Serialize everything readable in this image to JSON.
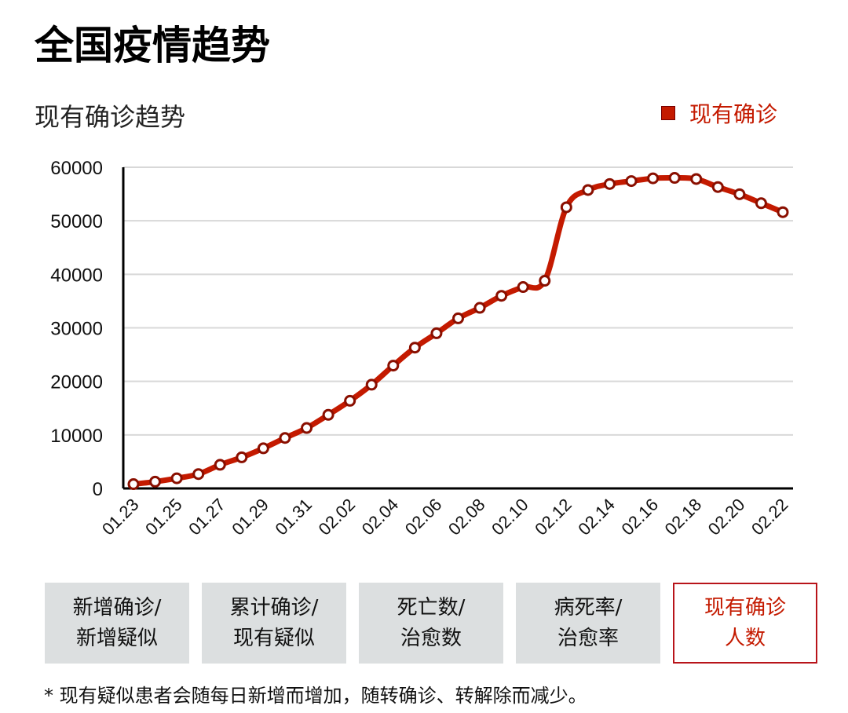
{
  "page_title": "全国疫情趋势",
  "chart_data": {
    "type": "line",
    "title": "现有确诊趋势",
    "series": [
      {
        "name": "现有确诊",
        "color": "#c41a00",
        "values": [
          799,
          1259,
          1896,
          2684,
          4412,
          5806,
          7498,
          9426,
          11289,
          13748,
          16369,
          19381,
          22942,
          26302,
          28985,
          31774,
          33738,
          35982,
          37626,
          38800,
          52526,
          55748,
          56873,
          57416,
          57934,
          58016,
          57805,
          56303,
          54965,
          53284,
          51606
        ]
      }
    ],
    "categories": [
      "01.23",
      "01.24",
      "01.25",
      "01.26",
      "01.27",
      "01.28",
      "01.29",
      "01.30",
      "01.31",
      "02.01",
      "02.02",
      "02.03",
      "02.04",
      "02.05",
      "02.06",
      "02.07",
      "02.08",
      "02.09",
      "02.10",
      "02.11",
      "02.12",
      "02.13",
      "02.14",
      "02.15",
      "02.16",
      "02.17",
      "02.18",
      "02.19",
      "02.20",
      "02.21",
      "02.22"
    ],
    "x_tick_labels": [
      "01.23",
      "01.25",
      "01.27",
      "01.29",
      "01.31",
      "02.02",
      "02.04",
      "02.06",
      "02.08",
      "02.10",
      "02.12",
      "02.14",
      "02.16",
      "02.18",
      "02.20",
      "02.22"
    ],
    "y_ticks": [
      "0",
      "10000",
      "20000",
      "30000",
      "40000",
      "50000",
      "60000"
    ],
    "ylim": [
      0,
      60000
    ],
    "grid": true,
    "legend": "top-right"
  },
  "buttons": [
    {
      "line1": "新增确诊/",
      "line2": "新增疑似",
      "active": false
    },
    {
      "line1": "累计确诊/",
      "line2": "现有疑似",
      "active": false
    },
    {
      "line1": "死亡数/",
      "line2": "治愈数",
      "active": false
    },
    {
      "line1": "病死率/",
      "line2": "治愈率",
      "active": false
    },
    {
      "line1": "现有确诊",
      "line2": "人数",
      "active": true
    }
  ],
  "footnote": "* 现有疑似患者会随每日新增而增加，随转确诊、转解除而减少。"
}
